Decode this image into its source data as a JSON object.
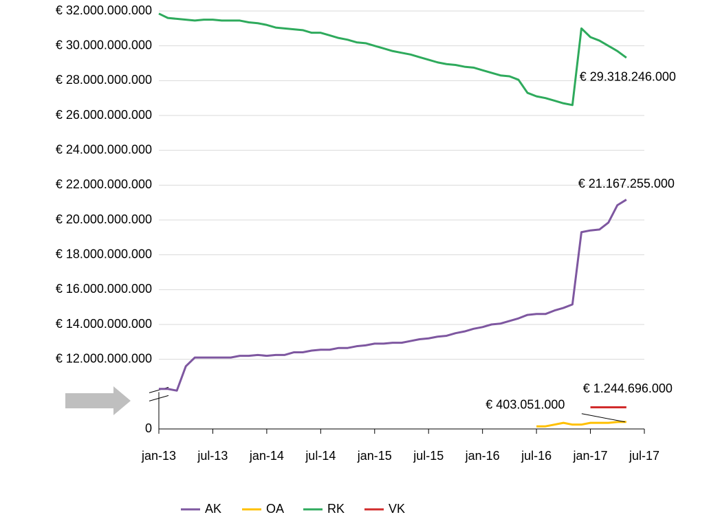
{
  "chart_data": {
    "type": "line",
    "x": [
      "2013-01",
      "2013-02",
      "2013-03",
      "2013-04",
      "2013-05",
      "2013-06",
      "2013-07",
      "2013-08",
      "2013-09",
      "2013-10",
      "2013-11",
      "2013-12",
      "2014-01",
      "2014-02",
      "2014-03",
      "2014-04",
      "2014-05",
      "2014-06",
      "2014-07",
      "2014-08",
      "2014-09",
      "2014-10",
      "2014-11",
      "2014-12",
      "2015-01",
      "2015-02",
      "2015-03",
      "2015-04",
      "2015-05",
      "2015-06",
      "2015-07",
      "2015-08",
      "2015-09",
      "2015-10",
      "2015-11",
      "2015-12",
      "2016-01",
      "2016-02",
      "2016-03",
      "2016-04",
      "2016-05",
      "2016-06",
      "2016-07",
      "2016-08",
      "2016-09",
      "2016-10",
      "2016-11",
      "2016-12",
      "2017-01",
      "2017-02",
      "2017-03",
      "2017-04",
      "2017-05"
    ],
    "series": [
      {
        "name": "AK",
        "color": "#7e57a0",
        "values": [
          10300000000,
          10300000000,
          10200000000,
          11600000000,
          12100000000,
          12100000000,
          12100000000,
          12100000000,
          12100000000,
          12200000000,
          12200000000,
          12250000000,
          12200000000,
          12250000000,
          12250000000,
          12400000000,
          12400000000,
          12500000000,
          12550000000,
          12550000000,
          12650000000,
          12650000000,
          12750000000,
          12800000000,
          12900000000,
          12900000000,
          12950000000,
          12950000000,
          13050000000,
          13150000000,
          13200000000,
          13300000000,
          13350000000,
          13500000000,
          13600000000,
          13750000000,
          13850000000,
          14000000000,
          14050000000,
          14200000000,
          14350000000,
          14550000000,
          14600000000,
          14600000000,
          14800000000,
          14950000000,
          15150000000,
          19300000000,
          19400000000,
          19450000000,
          19850000000,
          20850000000,
          21167255000
        ],
        "value_labels": [
          null,
          null,
          null,
          null,
          null,
          null,
          null,
          null,
          null,
          null,
          null,
          null,
          null,
          null,
          null,
          null,
          null,
          null,
          null,
          null,
          null,
          null,
          null,
          null,
          null,
          null,
          null,
          null,
          null,
          null,
          null,
          null,
          null,
          null,
          null,
          null,
          null,
          null,
          null,
          null,
          null,
          null,
          null,
          null,
          null,
          null,
          null,
          null,
          null,
          null,
          null,
          null,
          "€ 21.167.255.000"
        ]
      },
      {
        "name": "OA",
        "color": "#ffc000",
        "values": [
          null,
          null,
          null,
          null,
          null,
          null,
          null,
          null,
          null,
          null,
          null,
          null,
          null,
          null,
          null,
          null,
          null,
          null,
          null,
          null,
          null,
          null,
          null,
          null,
          null,
          null,
          null,
          null,
          null,
          null,
          null,
          null,
          null,
          null,
          null,
          null,
          null,
          null,
          null,
          null,
          null,
          null,
          150000000,
          150000000,
          250000000,
          350000000,
          250000000,
          250000000,
          350000000,
          350000000,
          350000000,
          400000000,
          403051000
        ],
        "value_labels": [
          null,
          null,
          null,
          null,
          null,
          null,
          null,
          null,
          null,
          null,
          null,
          null,
          null,
          null,
          null,
          null,
          null,
          null,
          null,
          null,
          null,
          null,
          null,
          null,
          null,
          null,
          null,
          null,
          null,
          null,
          null,
          null,
          null,
          null,
          null,
          null,
          null,
          null,
          null,
          null,
          null,
          null,
          null,
          null,
          null,
          null,
          null,
          null,
          null,
          null,
          null,
          null,
          "€ 403.051.000"
        ]
      },
      {
        "name": "RK",
        "color": "#2eaa5c",
        "values": [
          31850000000,
          31600000000,
          31550000000,
          31500000000,
          31450000000,
          31500000000,
          31500000000,
          31450000000,
          31450000000,
          31450000000,
          31350000000,
          31300000000,
          31200000000,
          31050000000,
          31000000000,
          30950000000,
          30900000000,
          30750000000,
          30750000000,
          30600000000,
          30450000000,
          30350000000,
          30200000000,
          30150000000,
          30000000000,
          29850000000,
          29700000000,
          29600000000,
          29500000000,
          29350000000,
          29200000000,
          29050000000,
          28950000000,
          28900000000,
          28800000000,
          28750000000,
          28600000000,
          28450000000,
          28300000000,
          28250000000,
          28050000000,
          27300000000,
          27100000000,
          27000000000,
          26850000000,
          26700000000,
          26600000000,
          31000000000,
          30500000000,
          30300000000,
          30000000000,
          29700000000,
          29318246000
        ],
        "value_labels": [
          null,
          null,
          null,
          null,
          null,
          null,
          null,
          null,
          null,
          null,
          null,
          null,
          null,
          null,
          null,
          null,
          null,
          null,
          null,
          null,
          null,
          null,
          null,
          null,
          null,
          null,
          null,
          null,
          null,
          null,
          null,
          null,
          null,
          null,
          null,
          null,
          null,
          null,
          null,
          null,
          null,
          null,
          null,
          null,
          null,
          null,
          null,
          null,
          null,
          null,
          null,
          null,
          "€ 29.318.246.000"
        ]
      },
      {
        "name": "VK",
        "color": "#d12b2b",
        "values": [
          null,
          null,
          null,
          null,
          null,
          null,
          null,
          null,
          null,
          null,
          null,
          null,
          null,
          null,
          null,
          null,
          null,
          null,
          null,
          null,
          null,
          null,
          null,
          null,
          null,
          null,
          null,
          null,
          null,
          null,
          null,
          null,
          null,
          null,
          null,
          null,
          null,
          null,
          null,
          null,
          null,
          null,
          null,
          null,
          null,
          null,
          null,
          null,
          1244696000,
          1244696000,
          1244696000,
          1244696000,
          1244696000
        ],
        "value_labels": [
          null,
          null,
          null,
          null,
          null,
          null,
          null,
          null,
          null,
          null,
          null,
          null,
          null,
          null,
          null,
          null,
          null,
          null,
          null,
          null,
          null,
          null,
          null,
          null,
          null,
          null,
          null,
          null,
          null,
          null,
          null,
          null,
          null,
          null,
          null,
          null,
          null,
          null,
          null,
          null,
          null,
          null,
          null,
          null,
          null,
          null,
          null,
          null,
          null,
          null,
          null,
          null,
          "€ 1.244.696.000"
        ]
      }
    ],
    "xlim": [
      "2013-01",
      "2017-07"
    ],
    "xticks": [
      {
        "value": "2013-01",
        "label": "jan-13"
      },
      {
        "value": "2013-07",
        "label": "jul-13"
      },
      {
        "value": "2014-01",
        "label": "jan-14"
      },
      {
        "value": "2014-07",
        "label": "jul-14"
      },
      {
        "value": "2015-01",
        "label": "jan-15"
      },
      {
        "value": "2015-07",
        "label": "jul-15"
      },
      {
        "value": "2016-01",
        "label": "jan-16"
      },
      {
        "value": "2016-07",
        "label": "jul-16"
      },
      {
        "value": "2017-01",
        "label": "jan-17"
      },
      {
        "value": "2017-07",
        "label": "jul-17"
      }
    ],
    "ylim": [
      0,
      32000000000
    ],
    "axis_break": [
      2000000000,
      10000000000
    ],
    "yticks": [
      0,
      {
        "value": 12000000000,
        "label": "€ 12.000.000.000"
      },
      {
        "value": 14000000000,
        "label": "€ 14.000.000.000"
      },
      {
        "value": 16000000000,
        "label": "€ 16.000.000.000"
      },
      {
        "value": 18000000000,
        "label": "€ 18.000.000.000"
      },
      {
        "value": 20000000000,
        "label": "€ 20.000.000.000"
      },
      {
        "value": 22000000000,
        "label": "€ 22.000.000.000"
      },
      {
        "value": 24000000000,
        "label": "€ 24.000.000.000"
      },
      {
        "value": 26000000000,
        "label": "€ 26.000.000.000"
      },
      {
        "value": 28000000000,
        "label": "€ 28.000.000.000"
      },
      {
        "value": 30000000000,
        "label": "€ 30.000.000.000"
      },
      {
        "value": 32000000000,
        "label": "€ 32.000.000.000"
      }
    ],
    "grid": true,
    "legend": "bottom"
  }
}
